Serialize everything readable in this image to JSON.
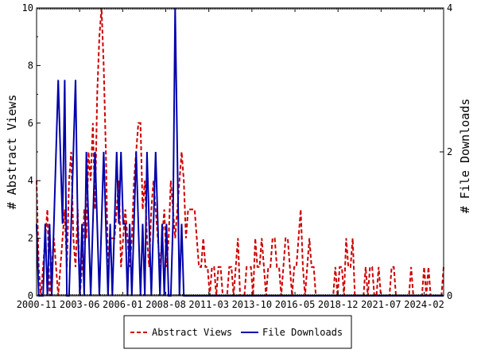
{
  "chart_data": {
    "type": "line",
    "title": "",
    "ylabel_left": "# Abstract Views",
    "ylabel_right": "# File Downloads",
    "ylim_left": [
      0,
      10
    ],
    "ylim_right": [
      0,
      4
    ],
    "left_ticks": [
      "0",
      "2",
      "4",
      "6",
      "8",
      "10"
    ],
    "right_ticks": [
      "0",
      "2",
      "4"
    ],
    "x_tick_labels": [
      "2000-11",
      "2003-06",
      "2006-01",
      "2008-08",
      "2011-03",
      "2013-10",
      "2016-05",
      "2018-12",
      "2021-07",
      "2024-02"
    ],
    "x_start": "2000-11",
    "x_end": "2025-04",
    "grid": false,
    "legend_position": "bottom-center",
    "colors": {
      "abstract_views": "#cc0000",
      "file_downloads": "#0000aa"
    },
    "series": [
      {
        "name": "Abstract Views",
        "axis": "left",
        "style": "dashed",
        "values": [
          4,
          1,
          0,
          1,
          2,
          3,
          0,
          1,
          2,
          1,
          0,
          1,
          2,
          3,
          1,
          4,
          5,
          2,
          1,
          3,
          0,
          1,
          3,
          2,
          5,
          4,
          6,
          3,
          7,
          9,
          10,
          8,
          5,
          1,
          2,
          2,
          2,
          3,
          4,
          1,
          2,
          3,
          2,
          1,
          2,
          4,
          5,
          6,
          6,
          3,
          4,
          2,
          1,
          3,
          4,
          3,
          2,
          1,
          2,
          3,
          1,
          2,
          4,
          3,
          2,
          3,
          4,
          5,
          4,
          2,
          3,
          3,
          3,
          3,
          2,
          1,
          1,
          2,
          1,
          1,
          0,
          1,
          1,
          0,
          1,
          1,
          0,
          0,
          0,
          1,
          1,
          0,
          1,
          2,
          0,
          0,
          0,
          1,
          1,
          1,
          0,
          2,
          1,
          1,
          2,
          1,
          0,
          1,
          1,
          2,
          2,
          1,
          1,
          0,
          1,
          2,
          2,
          1,
          0,
          1,
          1,
          2,
          3,
          1,
          0,
          1,
          2,
          1,
          1,
          0,
          0,
          0,
          0,
          0,
          0,
          0,
          0,
          0,
          1,
          0,
          1,
          1,
          0,
          2,
          1,
          1,
          2,
          0,
          0,
          0,
          0,
          0,
          1,
          0,
          1,
          1,
          0,
          0,
          1,
          0,
          0,
          0,
          0,
          0,
          1,
          1,
          0,
          0,
          0,
          0,
          0,
          0,
          0,
          1,
          0,
          0,
          0,
          0,
          0,
          1,
          0,
          1,
          0,
          0,
          0,
          0,
          0,
          0,
          1
        ]
      },
      {
        "name": "File Downloads",
        "axis": "right",
        "style": "solid",
        "values": [
          1,
          0,
          0,
          0,
          1,
          0,
          1,
          0,
          1,
          2,
          3,
          2,
          1,
          3,
          0,
          0,
          1,
          2,
          3,
          1,
          0,
          1,
          0,
          2,
          1,
          0,
          1,
          2,
          1,
          0,
          1,
          2,
          1,
          0,
          1,
          0,
          1,
          2,
          1,
          2,
          1,
          1,
          0,
          1,
          0,
          1,
          2,
          1,
          0,
          1,
          0,
          2,
          1,
          0,
          1,
          2,
          1,
          0,
          1,
          0,
          1,
          0,
          0,
          1,
          4,
          2,
          0,
          1,
          0,
          0,
          0,
          0,
          0,
          0,
          0,
          0,
          0,
          0,
          0,
          0,
          0,
          0,
          0,
          0,
          0,
          0,
          0,
          0,
          0,
          0,
          0,
          0,
          0,
          0,
          0,
          0,
          0,
          0,
          0,
          0,
          0,
          0,
          0,
          0,
          0,
          0,
          0,
          0,
          0,
          0,
          0,
          0,
          0,
          0,
          0,
          0,
          0,
          0,
          0,
          0,
          0,
          0,
          0,
          0,
          0,
          0,
          0,
          0,
          0,
          0,
          0,
          0,
          0,
          0,
          0,
          0,
          0,
          0,
          0,
          0,
          0,
          0,
          0,
          0,
          0,
          0,
          0,
          0,
          0,
          0,
          0,
          0,
          0,
          0,
          0,
          0,
          0,
          0,
          0,
          0,
          0,
          0,
          0,
          0,
          0,
          0,
          0,
          0,
          0,
          0,
          0,
          0,
          0,
          0,
          0,
          0,
          0,
          0,
          0,
          0,
          0,
          0,
          0,
          0,
          0,
          0,
          0,
          0,
          0
        ]
      }
    ]
  }
}
